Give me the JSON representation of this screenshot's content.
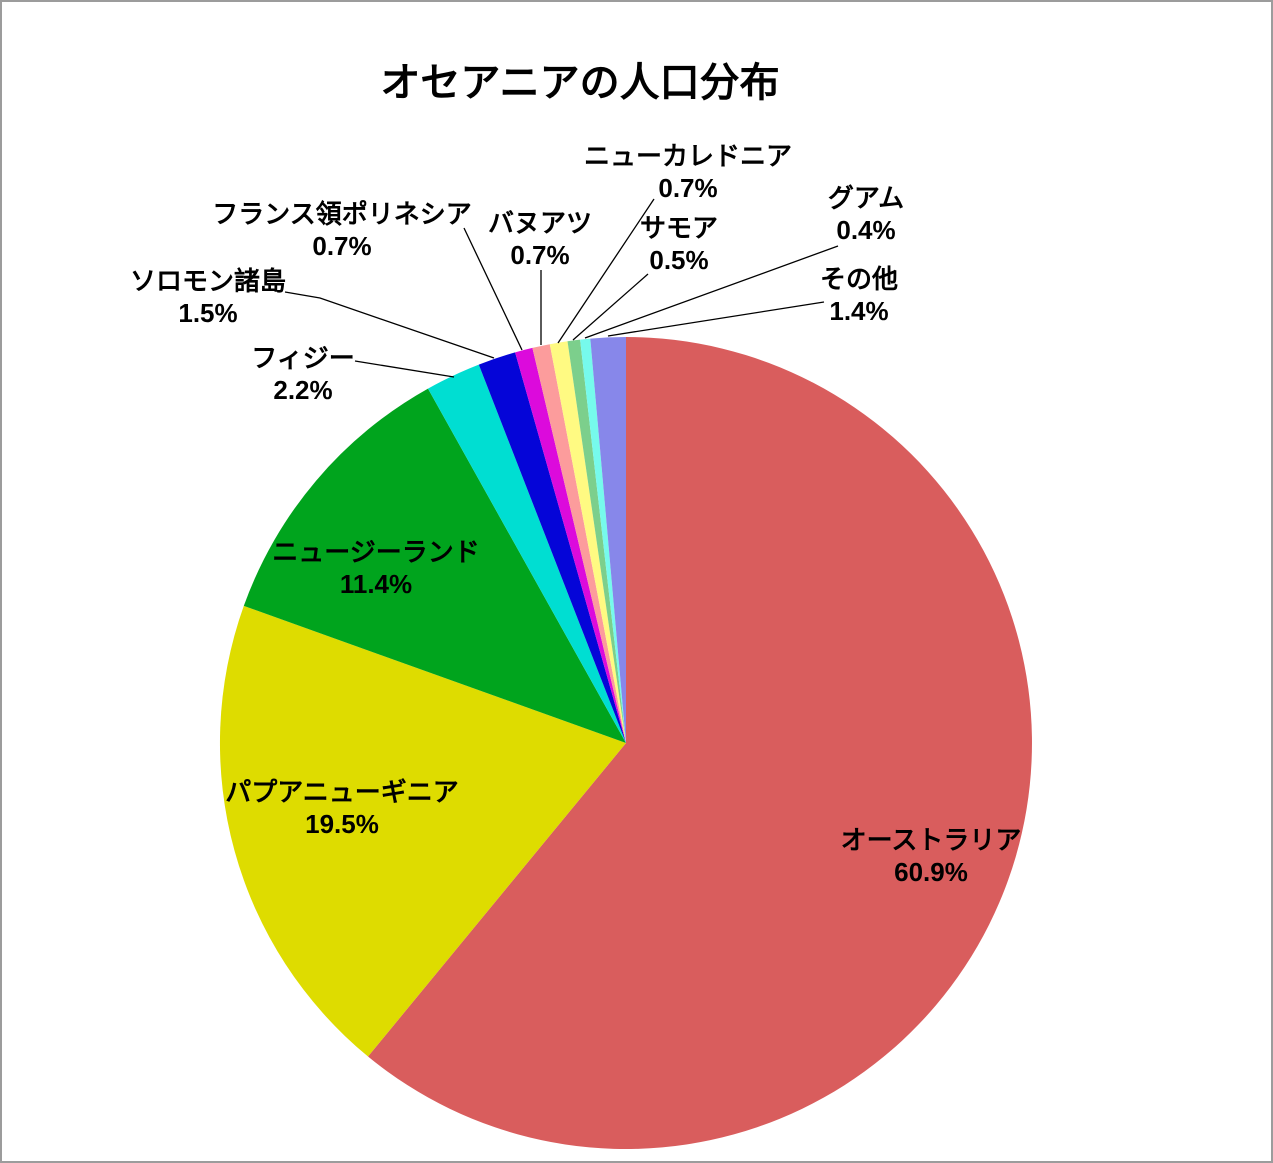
{
  "chart_data": {
    "type": "pie",
    "title": "オセアニアの人口分布",
    "unit": "%",
    "direction": "clockwise",
    "start_angle_deg": 0,
    "legend": "none",
    "slices": [
      {
        "label": "オーストラリア",
        "value": 60.9,
        "pct_label": "60.9%",
        "color": "#D95D5D",
        "label_placement": "inside"
      },
      {
        "label": "パプアニューギニア",
        "value": 19.5,
        "pct_label": "19.5%",
        "color": "#DEDC00",
        "label_placement": "inside"
      },
      {
        "label": "ニュージーランド",
        "value": 11.4,
        "pct_label": "11.4%",
        "color": "#00A41D",
        "label_placement": "inside"
      },
      {
        "label": "フィジー",
        "value": 2.2,
        "pct_label": "2.2%",
        "color": "#00DED2",
        "label_placement": "outside"
      },
      {
        "label": "ソロモン諸島",
        "value": 1.5,
        "pct_label": "1.5%",
        "color": "#0505D8",
        "label_placement": "outside"
      },
      {
        "label": "フランス領ポリネシア",
        "value": 0.7,
        "pct_label": "0.7%",
        "color": "#DC0ADC",
        "label_placement": "outside"
      },
      {
        "label": "バヌアツ",
        "value": 0.7,
        "pct_label": "0.7%",
        "color": "#FC9C9C",
        "label_placement": "outside"
      },
      {
        "label": "ニューカレドニア",
        "value": 0.7,
        "pct_label": "0.7%",
        "color": "#FFFA82",
        "label_placement": "outside"
      },
      {
        "label": "サモア",
        "value": 0.5,
        "pct_label": "0.5%",
        "color": "#7CCF8C",
        "label_placement": "outside"
      },
      {
        "label": "グアム",
        "value": 0.4,
        "pct_label": "0.4%",
        "color": "#76FAEC",
        "label_placement": "outside"
      },
      {
        "label": "その他",
        "value": 1.4,
        "pct_label": "1.4%",
        "color": "#8787EA",
        "label_placement": "outside"
      }
    ]
  }
}
